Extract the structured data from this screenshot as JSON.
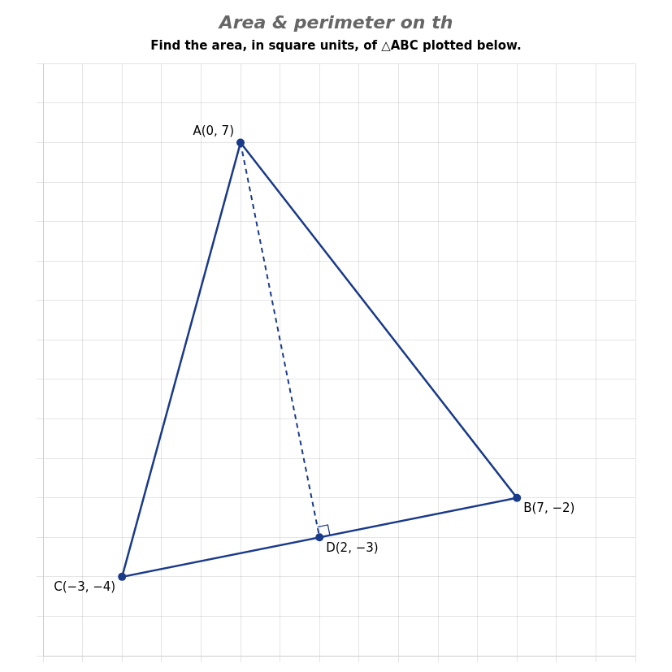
{
  "chart_data": {
    "type": "scatter",
    "title": "Area & perimeter on th",
    "subtitle": "Find the area, in square units, of △ABC plotted below.",
    "color": "#1a3a8a",
    "series": [
      {
        "type": "line",
        "line_style": "solid",
        "x": [
          0,
          7,
          -3,
          0
        ],
        "y": [
          7,
          -2,
          -4,
          7
        ]
      },
      {
        "type": "line",
        "line_style": "dashed",
        "x": [
          0,
          2
        ],
        "y": [
          7,
          -3
        ]
      },
      {
        "type": "scatter",
        "marker": "circle",
        "x": [
          0,
          7,
          -3,
          2
        ],
        "y": [
          7,
          -2,
          -4,
          -3
        ]
      }
    ],
    "annotations": [
      {
        "text": "A(0, 7)",
        "x": 0,
        "y": 7
      },
      {
        "text": "B(7, −2)",
        "x": 7,
        "y": -2
      },
      {
        "text": "C(−3, −4)",
        "x": -3,
        "y": -4
      },
      {
        "text": "D(2, −3)",
        "x": 2,
        "y": -3
      }
    ],
    "xlim": [
      -5,
      10
    ],
    "ylim": [
      -6,
      9
    ],
    "xticks": [
      -5,
      -4,
      -3,
      -2,
      -1,
      0,
      1,
      2,
      3,
      4,
      5,
      6,
      7,
      8,
      9,
      10
    ],
    "yticks": [
      -6,
      -5,
      -4,
      -3,
      -2,
      -1,
      0,
      1,
      2,
      3,
      4,
      5,
      6,
      7,
      8,
      9
    ],
    "grid": true,
    "tick_labels": false
  }
}
